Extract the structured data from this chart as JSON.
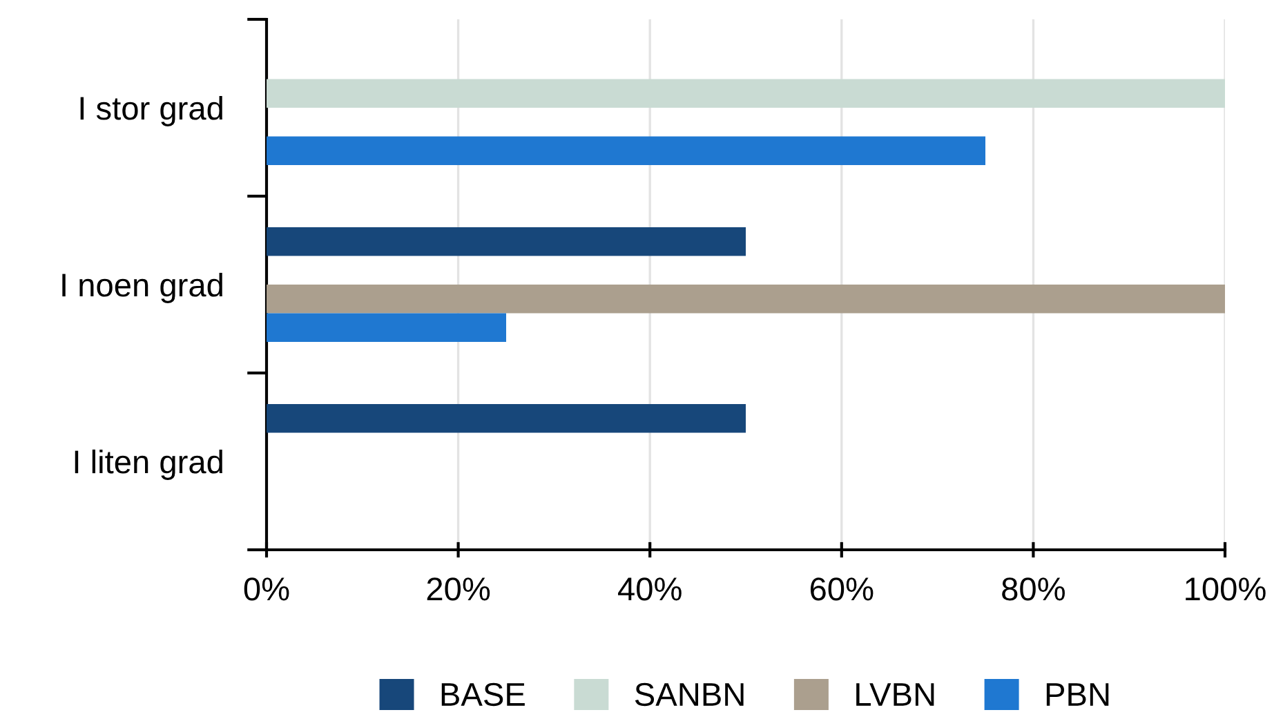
{
  "chart_data": {
    "type": "bar",
    "orientation": "horizontal",
    "categories": [
      "I stor grad",
      "I noen grad",
      "I liten grad"
    ],
    "series": [
      {
        "name": "BASE",
        "color": "#17477a",
        "values": [
          0,
          50,
          50
        ]
      },
      {
        "name": "SANBN",
        "color": "#c9dbd3",
        "values": [
          100,
          0,
          0
        ]
      },
      {
        "name": "LVBN",
        "color": "#ab9f8e",
        "values": [
          0,
          100,
          0
        ]
      },
      {
        "name": "PBN",
        "color": "#1f78d1",
        "values": [
          75,
          25,
          0
        ]
      }
    ],
    "xlim": [
      0,
      100
    ],
    "xticks": [
      {
        "value": 0,
        "label": "0%"
      },
      {
        "value": 20,
        "label": "20%"
      },
      {
        "value": 40,
        "label": "40%"
      },
      {
        "value": 60,
        "label": "60%"
      },
      {
        "value": 80,
        "label": "80%"
      },
      {
        "value": 100,
        "label": "100%"
      }
    ],
    "grid": "x",
    "legend": "bottom"
  }
}
